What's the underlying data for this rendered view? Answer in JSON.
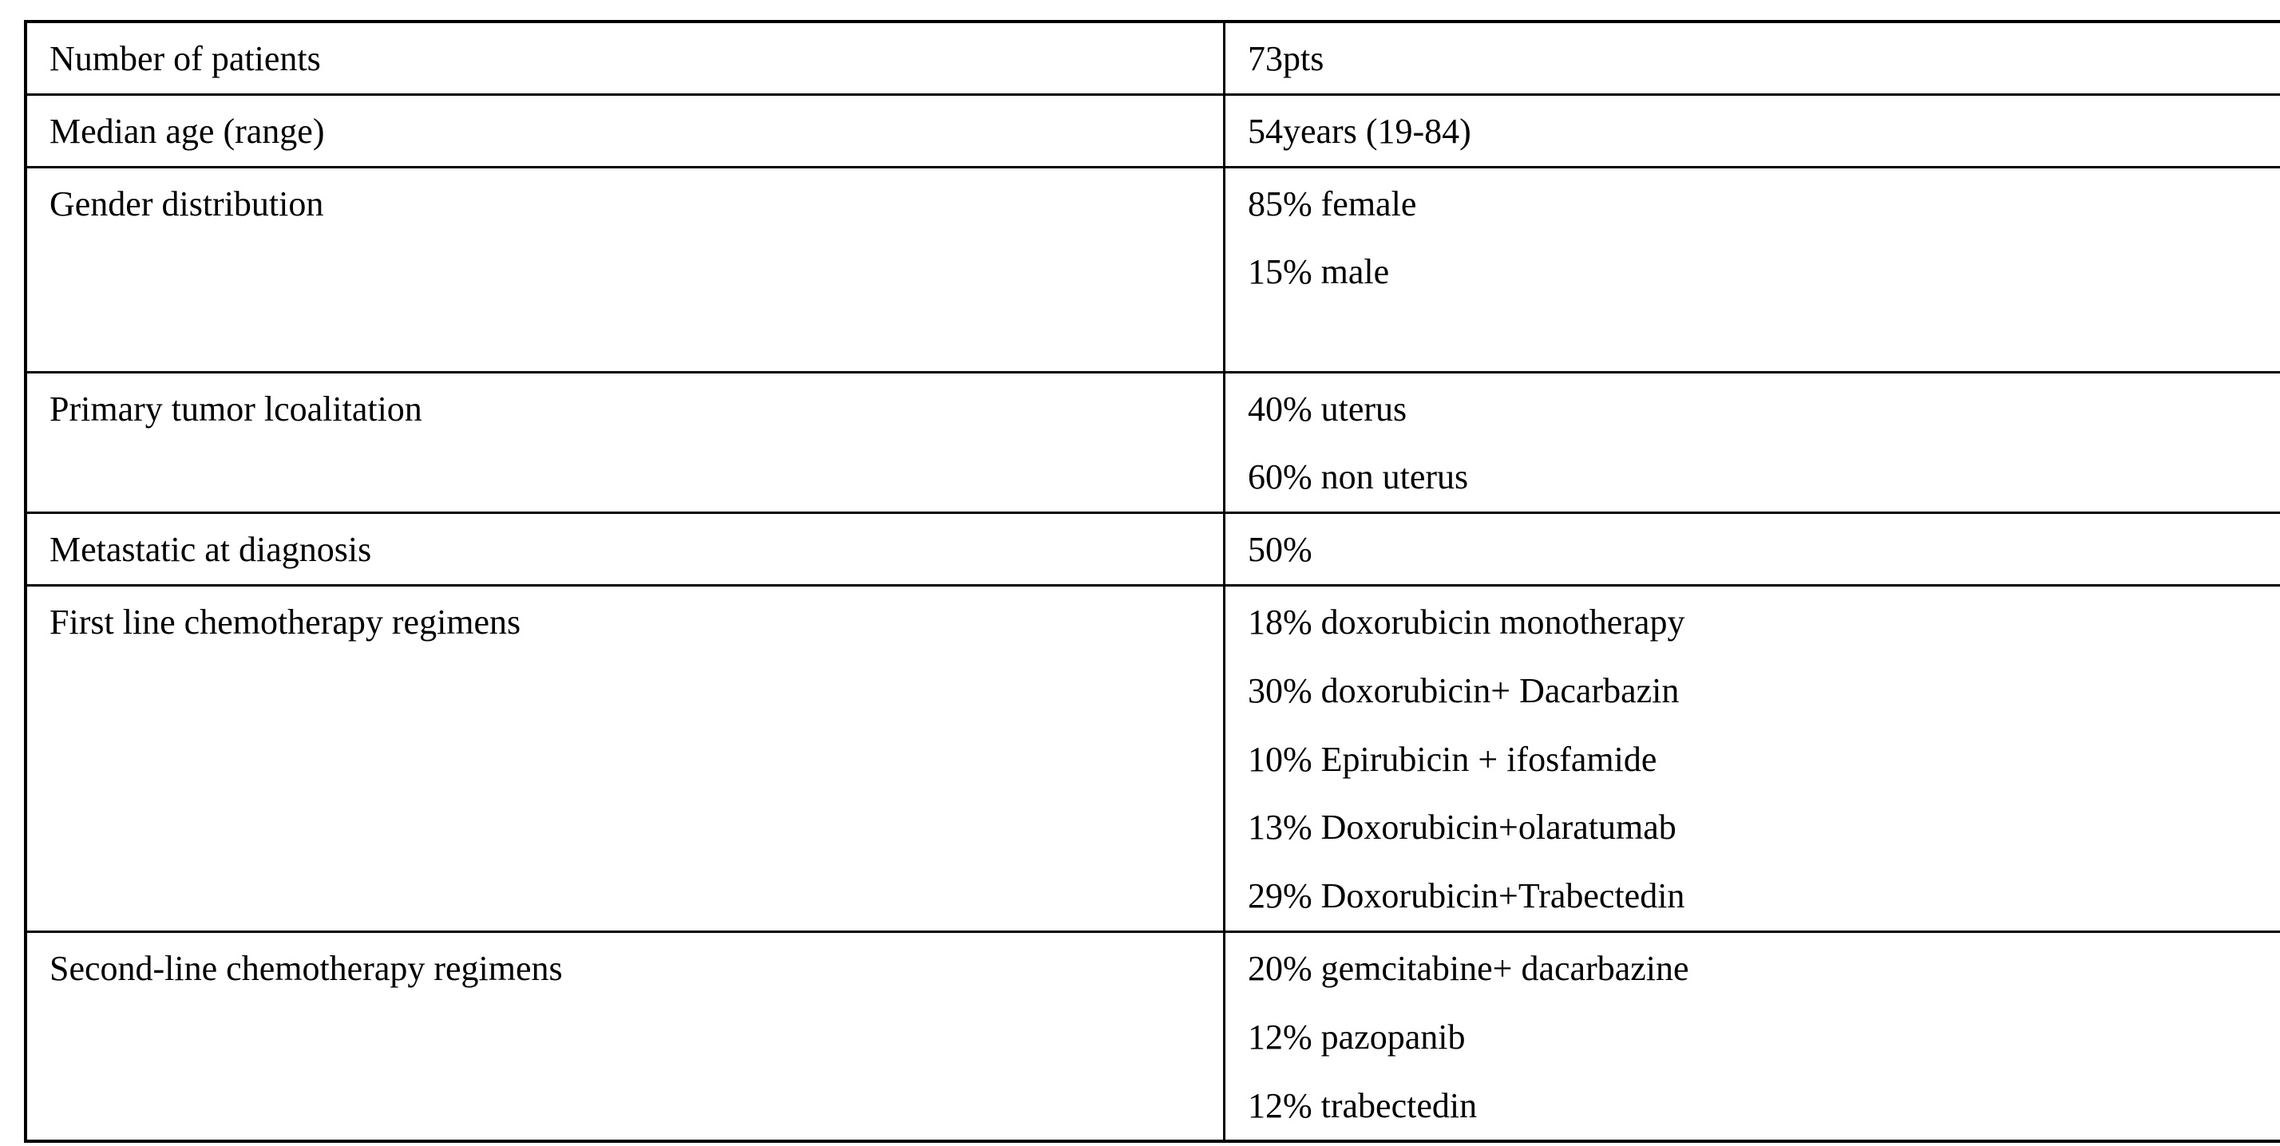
{
  "table": {
    "name": "patient-characteristics-table",
    "rows": [
      {
        "label": "Number of patients",
        "values": [
          "73pts"
        ]
      },
      {
        "label": "Median age (range)",
        "values": [
          "54years (19-84)"
        ]
      },
      {
        "label": "Gender distribution",
        "values": [
          "85% female",
          "15% male"
        ]
      },
      {
        "label": "Primary tumor lcoalitation",
        "values": [
          "40% uterus",
          "60% non uterus"
        ]
      },
      {
        "label": "Metastatic at diagnosis",
        "values": [
          "50%"
        ]
      },
      {
        "label": "First line chemotherapy regimens",
        "values": [
          "18% doxorubicin monotherapy",
          "30% doxorubicin+ Dacarbazin",
          "10% Epirubicin + ifosfamide",
          "13% Doxorubicin+olaratumab",
          "29% Doxorubicin+Trabectedin"
        ]
      },
      {
        "label": "Second-line chemotherapy regimens",
        "values": [
          "20% gemcitabine+ dacarbazine",
          "12% pazopanib",
          "12% trabectedin"
        ]
      }
    ],
    "colors": {
      "border": "#000000",
      "background": "#ffffff",
      "text": "#000000"
    }
  }
}
